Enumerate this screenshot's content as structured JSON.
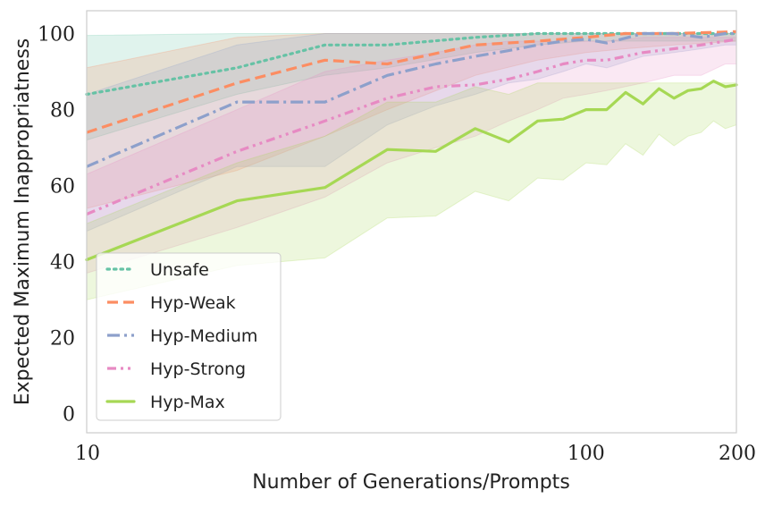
{
  "chart_data": {
    "type": "line",
    "title": "",
    "xlabel": "Number of Generations/Prompts",
    "ylabel": "Expected Maximum Inappropriatness",
    "xscale": "log",
    "xlim": [
      10,
      200
    ],
    "ylim": [
      -5,
      106
    ],
    "xticks": [
      10,
      100,
      200
    ],
    "xtick_labels": [
      "10",
      "100",
      "200"
    ],
    "yticks": [
      0,
      20,
      40,
      60,
      80,
      100
    ],
    "ytick_labels": [
      "0",
      "20",
      "40",
      "60",
      "80",
      "100"
    ],
    "grid": false,
    "legend_position": "lower-left",
    "series": [
      {
        "name": "Unsafe",
        "color": "#66c2a5",
        "style": "dotted",
        "x": [
          10,
          20,
          30,
          40,
          60,
          80,
          100,
          120,
          150,
          200
        ],
        "y": [
          84,
          91,
          97,
          97,
          99,
          100,
          100,
          100,
          100,
          100
        ],
        "band_low": [
          72,
          84,
          89,
          91,
          95,
          97,
          98,
          98,
          98,
          98
        ],
        "band_high": [
          99.5,
          100,
          100,
          100,
          100,
          100,
          100,
          100,
          100,
          100
        ]
      },
      {
        "name": "Hyp-Weak",
        "color": "#fc8d62",
        "style": "dashed",
        "x": [
          10,
          20,
          30,
          40,
          60,
          80,
          100,
          120,
          150,
          200
        ],
        "y": [
          74,
          87,
          93,
          92,
          97,
          98,
          99,
          100,
          100,
          100.5
        ],
        "band_low": [
          54,
          64,
          73,
          80,
          89,
          93,
          95,
          96,
          97,
          98
        ],
        "band_high": [
          91,
          99,
          100,
          100,
          100,
          100,
          100,
          100,
          100,
          100
        ]
      },
      {
        "name": "Hyp-Medium",
        "color": "#8da0cb",
        "style": "dashdot",
        "x": [
          10,
          20,
          30,
          40,
          50,
          60,
          70,
          80,
          90,
          100,
          110,
          130,
          150,
          170,
          190,
          200
        ],
        "y": [
          65,
          82,
          82,
          89,
          92,
          94,
          95.5,
          97,
          98,
          98.5,
          97.5,
          100,
          100,
          99,
          100,
          100
        ],
        "band_low": [
          48,
          65,
          65,
          76,
          81,
          84,
          87,
          88,
          90,
          92,
          91,
          94,
          95,
          96,
          97,
          97
        ],
        "band_high": [
          84,
          97,
          100,
          100,
          100,
          100,
          100,
          100,
          100,
          100,
          100,
          100,
          100,
          100,
          100,
          100
        ]
      },
      {
        "name": "Hyp-Strong",
        "color": "#e78ac3",
        "style": "dashdotdot",
        "x": [
          10,
          20,
          30,
          40,
          50,
          60,
          70,
          80,
          90,
          100,
          110,
          130,
          150,
          170,
          190,
          200
        ],
        "y": [
          52.5,
          69,
          77,
          83,
          86,
          86.5,
          88,
          90,
          92,
          93,
          93,
          95,
          96,
          97,
          98,
          98.5
        ],
        "band_low": [
          37,
          49,
          57,
          66,
          70,
          73,
          77,
          80,
          83,
          84,
          85,
          87,
          89,
          89,
          92,
          92
        ],
        "band_high": [
          63,
          80,
          90,
          93,
          95,
          97,
          98,
          98,
          98,
          98,
          98,
          99,
          99,
          99,
          99,
          99
        ]
      },
      {
        "name": "Hyp-Max",
        "color": "#a6d854",
        "style": "solid",
        "x": [
          10,
          20,
          30,
          40,
          50,
          60,
          70,
          80,
          90,
          100,
          110,
          120,
          130,
          140,
          150,
          160,
          170,
          180,
          190,
          200
        ],
        "y": [
          40.5,
          56,
          59.5,
          69.5,
          69,
          75,
          71.5,
          77,
          77.5,
          80,
          80,
          84.5,
          81.5,
          85.5,
          83,
          85,
          85.5,
          87.5,
          86,
          86.5
        ],
        "band_low": [
          30,
          39,
          41,
          51.5,
          52,
          58.5,
          56,
          62,
          61.5,
          66,
          65.5,
          71,
          68,
          73.5,
          70.5,
          73,
          74,
          77,
          75,
          76
        ],
        "band_high": [
          50,
          66,
          73,
          82,
          82,
          86,
          84,
          87,
          87,
          87,
          87,
          87,
          87,
          87,
          87,
          87,
          87,
          87,
          87,
          87
        ]
      }
    ]
  }
}
